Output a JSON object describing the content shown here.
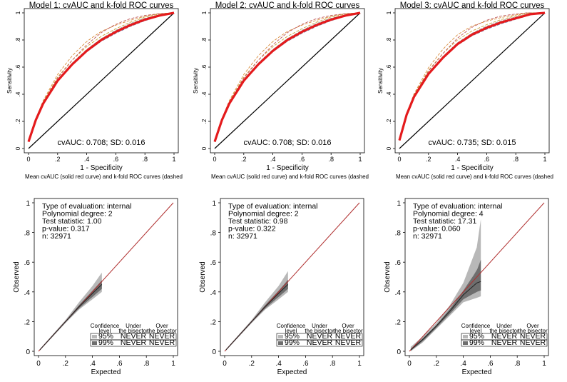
{
  "colors": {
    "mean_roc": "#e41a1c",
    "fold_dashed": [
      "#d98b3a",
      "#c8a43a",
      "#9a9a9a",
      "#6a6a9a",
      "#c05a5a"
    ],
    "diagonal_roc": "#000000",
    "bisector": "#b03030",
    "band95": "#b8b8b8",
    "band99": "#6e6e6e",
    "calib_line": "#222222"
  },
  "roc_common": {
    "xlabel": "1 - Specificity",
    "ylabel": "Sensitivity",
    "caption": "Mean cvAUC (solid red curve) and k-fold ROC curves (dashed",
    "ticks": [
      "0",
      ".2",
      ".4",
      ".6",
      ".8",
      "1"
    ],
    "ticks_y": [
      "0",
      ".2",
      ".4",
      ".6",
      ".8",
      "1"
    ]
  },
  "calib_common": {
    "xlabel": "Expected",
    "ylabel": "Observed",
    "ticks": [
      "0",
      ".2",
      ".4",
      ".6",
      ".8",
      "1"
    ],
    "ticks_y": [
      "0",
      ".2",
      ".4",
      ".6",
      ".8",
      "1"
    ],
    "legend": {
      "col1": [
        "Confidence",
        "level"
      ],
      "col2": [
        "Under",
        "the bisector"
      ],
      "col3": [
        "Over",
        "the bisector"
      ],
      "rows": [
        {
          "level": "95%",
          "under": "NEVER",
          "over": "NEVER"
        },
        {
          "level": "99%",
          "under": "NEVER",
          "over": "NEVER"
        }
      ]
    }
  },
  "chart_data": [
    {
      "type": "line",
      "panel": "roc",
      "title": "Model 1: cvAUC and k-fold ROC curves",
      "auc_text": "cvAUC: 0.708; SD: 0.016",
      "cvauc": 0.708,
      "sd": 0.016,
      "xlim": [
        0,
        1
      ],
      "ylim": [
        0,
        1
      ],
      "series": [
        {
          "name": "mean ROC",
          "x": [
            0,
            0.05,
            0.1,
            0.2,
            0.3,
            0.4,
            0.5,
            0.6,
            0.7,
            0.8,
            0.9,
            1
          ],
          "y": [
            0.05,
            0.21,
            0.33,
            0.5,
            0.62,
            0.72,
            0.8,
            0.86,
            0.91,
            0.95,
            0.98,
            1.0
          ]
        }
      ]
    },
    {
      "type": "line",
      "panel": "roc",
      "title": "Model 2: cvAUC and k-fold ROC curves",
      "auc_text": "cvAUC: 0.708; SD: 0.016",
      "cvauc": 0.708,
      "sd": 0.016,
      "xlim": [
        0,
        1
      ],
      "ylim": [
        0,
        1
      ],
      "series": [
        {
          "name": "mean ROC",
          "x": [
            0,
            0.05,
            0.1,
            0.2,
            0.3,
            0.4,
            0.5,
            0.6,
            0.7,
            0.8,
            0.9,
            1
          ],
          "y": [
            0.05,
            0.21,
            0.33,
            0.5,
            0.62,
            0.72,
            0.8,
            0.86,
            0.91,
            0.95,
            0.98,
            1.0
          ]
        }
      ]
    },
    {
      "type": "line",
      "panel": "roc",
      "title": "Model 3: cvAUC and k-fold ROC curves",
      "auc_text": "cvAUC: 0.735; SD: 0.015",
      "cvauc": 0.735,
      "sd": 0.015,
      "xlim": [
        0,
        1
      ],
      "ylim": [
        0,
        1
      ],
      "series": [
        {
          "name": "mean ROC",
          "x": [
            0,
            0.05,
            0.1,
            0.2,
            0.3,
            0.4,
            0.5,
            0.6,
            0.7,
            0.8,
            0.9,
            1
          ],
          "y": [
            0.06,
            0.25,
            0.38,
            0.55,
            0.67,
            0.77,
            0.84,
            0.89,
            0.93,
            0.96,
            0.99,
            1.0
          ]
        }
      ]
    },
    {
      "type": "area",
      "panel": "calibration",
      "stats": [
        "Type of evaluation: internal",
        "Polynomial degree: 2",
        "Test statistic: 1.00",
        "p-value: 0.317",
        "n: 32971"
      ],
      "xlim": [
        0,
        1
      ],
      "ylim": [
        0,
        1
      ],
      "series": [
        {
          "name": "calibration",
          "x": [
            0.01,
            0.1,
            0.2,
            0.3,
            0.4,
            0.47
          ],
          "y": [
            0.01,
            0.1,
            0.2,
            0.3,
            0.39,
            0.45
          ]
        },
        {
          "name": "band95_upper",
          "x": [
            0.01,
            0.2,
            0.3,
            0.4,
            0.47
          ],
          "y": [
            0.015,
            0.21,
            0.33,
            0.44,
            0.53
          ]
        },
        {
          "name": "band95_lower",
          "x": [
            0.01,
            0.2,
            0.3,
            0.4,
            0.47
          ],
          "y": [
            0.005,
            0.19,
            0.28,
            0.35,
            0.4
          ]
        }
      ]
    },
    {
      "type": "area",
      "panel": "calibration",
      "stats": [
        "Type of evaluation: internal",
        "Polynomial degree: 2",
        "Test statistic: 0.98",
        "p-value: 0.322",
        "n: 32971"
      ],
      "xlim": [
        0,
        1
      ],
      "ylim": [
        0,
        1
      ],
      "series": [
        {
          "name": "calibration",
          "x": [
            0.01,
            0.1,
            0.2,
            0.3,
            0.4,
            0.47
          ],
          "y": [
            0.01,
            0.1,
            0.2,
            0.3,
            0.39,
            0.45
          ]
        },
        {
          "name": "band95_upper",
          "x": [
            0.01,
            0.2,
            0.3,
            0.4,
            0.47
          ],
          "y": [
            0.015,
            0.21,
            0.33,
            0.44,
            0.54
          ]
        },
        {
          "name": "band95_lower",
          "x": [
            0.01,
            0.2,
            0.3,
            0.4,
            0.47
          ],
          "y": [
            0.005,
            0.19,
            0.28,
            0.35,
            0.4
          ]
        }
      ]
    },
    {
      "type": "area",
      "panel": "calibration",
      "stats": [
        "Type of evaluation: internal",
        "Polynomial degree: 4",
        "Test statistic: 17.31",
        "p-value: 0.060",
        "n: 32971"
      ],
      "xlim": [
        0,
        1
      ],
      "ylim": [
        0,
        1
      ],
      "series": [
        {
          "name": "calibration",
          "x": [
            0.01,
            0.1,
            0.2,
            0.3,
            0.4,
            0.5,
            0.53
          ],
          "y": [
            0.01,
            0.08,
            0.17,
            0.27,
            0.38,
            0.46,
            0.47
          ]
        },
        {
          "name": "band95_upper",
          "x": [
            0.01,
            0.1,
            0.2,
            0.3,
            0.4,
            0.5,
            0.53
          ],
          "y": [
            0.03,
            0.1,
            0.19,
            0.31,
            0.46,
            0.7,
            0.89
          ]
        },
        {
          "name": "band95_lower",
          "x": [
            0.01,
            0.1,
            0.2,
            0.3,
            0.4,
            0.5,
            0.53
          ],
          "y": [
            0.0,
            0.06,
            0.15,
            0.24,
            0.33,
            0.36,
            0.37
          ]
        }
      ]
    }
  ]
}
